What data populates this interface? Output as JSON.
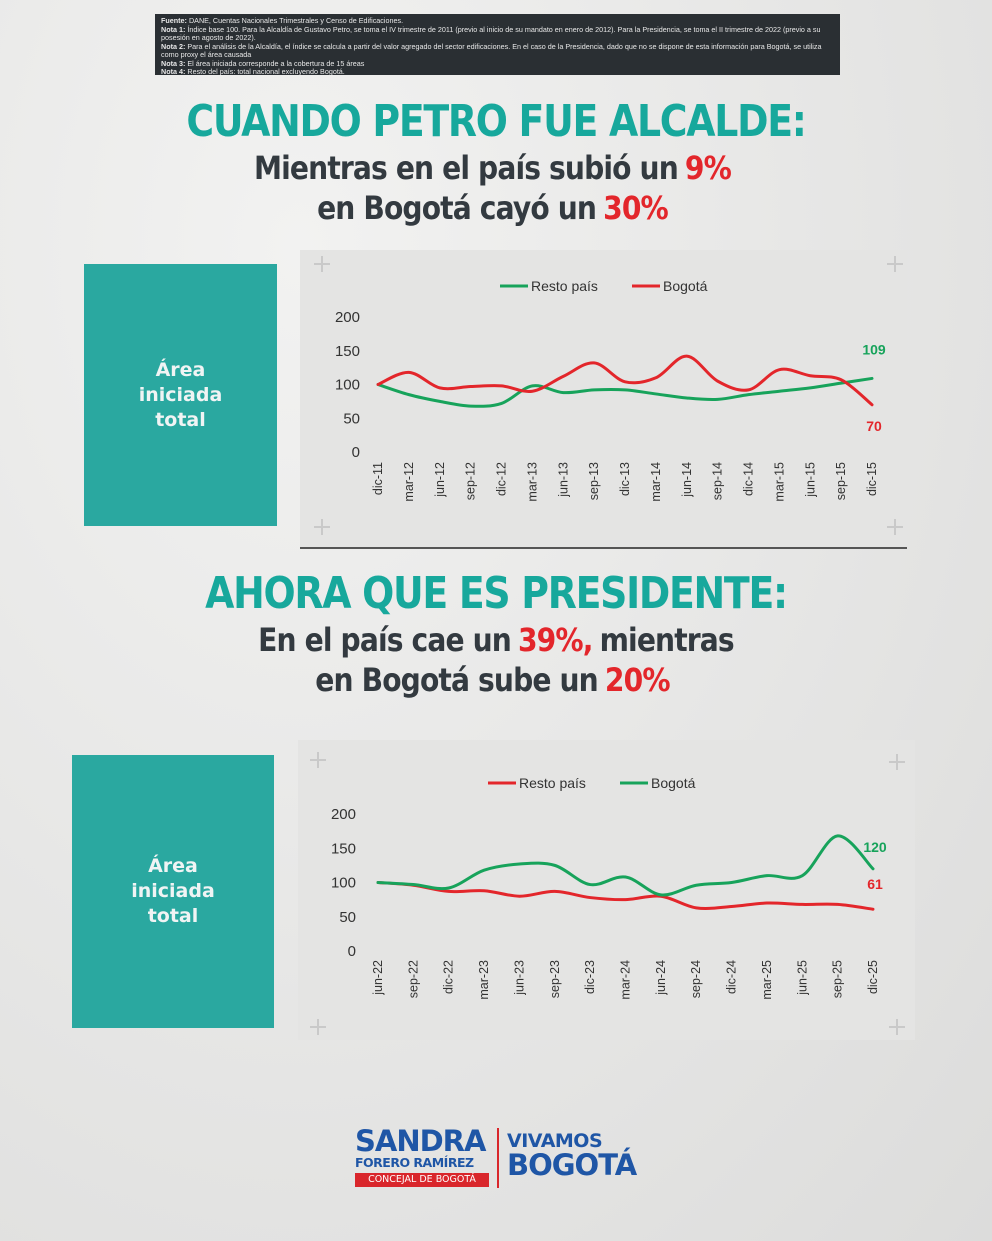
{
  "notes": [
    {
      "label": "Fuente:",
      "text": "DANE, Cuentas Nacionales Trimestrales y Censo de Edificaciones."
    },
    {
      "label": "Nota 1:",
      "text": "Índice base 100. Para la Alcaldía de Gustavo Petro, se toma el IV trimestre de 2011 (previo al inicio de su mandato en enero de 2012). Para la Presidencia, se toma el II trimestre de 2022 (previo a su posesión en agosto de 2022)."
    },
    {
      "label": "Nota 2:",
      "text": "Para el análisis de la Alcaldía, el índice se calcula a partir del valor agregado del sector edificaciones. En el caso de la Presidencia, dado que no se dispone de esta información para Bogotá, se utiliza como proxy el área causada"
    },
    {
      "label": "Nota 3:",
      "text": "El área iniciada corresponde a la cobertura de 15 áreas"
    },
    {
      "label": "Nota 4:",
      "text": "Resto del país: total nacional excluyendo Bogotá."
    }
  ],
  "highlight_color": "#e3262b",
  "headlines": [
    {
      "title": "CUANDO PETRO FUE ALCALDE:",
      "lines": [
        [
          "Mientras en el país subió un",
          "9%"
        ],
        [
          "en Bogotá cayó un",
          "30%"
        ]
      ]
    },
    {
      "title": "AHORA QUE ES PRESIDENTE:",
      "lines": [
        [
          "En el país cae un",
          "39%,",
          "mientras"
        ],
        [
          "en Bogotá sube un",
          "20%"
        ]
      ]
    }
  ],
  "chart_data": [
    {
      "type": "line",
      "label": "Área iniciada total",
      "grid": false,
      "legend": "top",
      "categories": [
        "dic-11",
        "mar-12",
        "jun-12",
        "sep-12",
        "dic-12",
        "mar-13",
        "jun-13",
        "sep-13",
        "dic-13",
        "mar-14",
        "jun-14",
        "sep-14",
        "dic-14",
        "mar-15",
        "jun-15",
        "sep-15",
        "dic-15"
      ],
      "series": [
        {
          "name": "Resto país",
          "color": "#17a35b",
          "values": [
            100,
            85,
            75,
            68,
            72,
            98,
            88,
            92,
            92,
            86,
            80,
            78,
            85,
            90,
            95,
            102,
            109
          ]
        },
        {
          "name": "Bogotá",
          "color": "#e3262b",
          "values": [
            100,
            118,
            95,
            97,
            98,
            90,
            112,
            132,
            104,
            110,
            142,
            105,
            92,
            122,
            113,
            107,
            70
          ]
        }
      ],
      "ylim": [
        0,
        200
      ],
      "yticks": [
        0,
        50,
        100,
        150,
        200
      ]
    },
    {
      "type": "line",
      "label": "Área iniciada total",
      "grid": false,
      "legend": "top",
      "categories": [
        "jun-22",
        "sep-22",
        "dic-22",
        "mar-23",
        "jun-23",
        "sep-23",
        "dic-23",
        "mar-24",
        "jun-24",
        "sep-24",
        "dic-24",
        "mar-25",
        "jun-25",
        "sep-25",
        "dic-25"
      ],
      "series": [
        {
          "name": "Resto país",
          "color": "#e3262b",
          "values": [
            100,
            96,
            87,
            88,
            80,
            87,
            78,
            75,
            80,
            63,
            65,
            70,
            68,
            68,
            61
          ]
        },
        {
          "name": "Bogotá",
          "color": "#17a35b",
          "values": [
            100,
            97,
            92,
            118,
            127,
            125,
            97,
            108,
            82,
            96,
            100,
            110,
            110,
            168,
            120
          ]
        }
      ],
      "ylim": [
        0,
        200
      ],
      "yticks": [
        0,
        50,
        100,
        150,
        200
      ]
    }
  ],
  "footer": {
    "name": "SANDRA",
    "surname": "FORERO RAMÍREZ",
    "role": "CONCEJAL DE BOGOTÁ",
    "party_1": "VIVAMOS",
    "party_2": "BOGOTÁ"
  }
}
